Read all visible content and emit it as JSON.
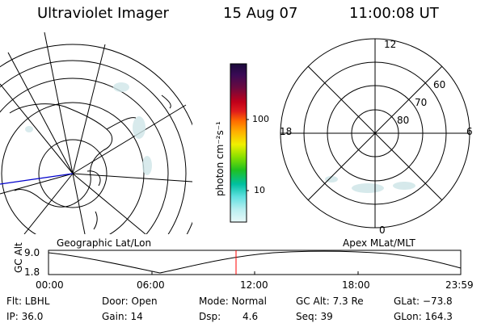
{
  "header": {
    "instrument": "Ultraviolet Imager",
    "date": "15 Aug 07",
    "time": "11:00:08 UT"
  },
  "geo_panel": {
    "label": "Geographic Lat/Lon"
  },
  "apex_panel": {
    "label": "Apex MLat/MLT",
    "mlt_labels": [
      "12",
      "18",
      "6",
      "0"
    ],
    "lat_labels": [
      "60",
      "70",
      "80"
    ]
  },
  "colorbar": {
    "unit": "photon cm⁻²s⁻¹",
    "ticks": [
      "100",
      "10"
    ],
    "colors": [
      "#1a0a3a",
      "#3a0a55",
      "#6a0a40",
      "#c0001a",
      "#e01c1c",
      "#ff6a00",
      "#ffb000",
      "#f0f000",
      "#88e000",
      "#20c020",
      "#00c0a0",
      "#60e0e0",
      "#b8eef0",
      "#e8f8f8"
    ]
  },
  "timeline": {
    "ylabel": "GC Alt",
    "y_ticks": [
      "9.0",
      "1.8"
    ],
    "x_ticks": [
      "00:00",
      "06:00",
      "12:00",
      "18:00",
      "23:59"
    ],
    "marker_color": "#ff0000"
  },
  "info": {
    "row1": {
      "filter": "Flt: LBHL",
      "door": "Door: Open",
      "mode": "Mode: Normal",
      "gcalt": "GC Alt: 7.3 Re",
      "glat": "GLat: −73.8"
    },
    "row2": {
      "ip": "IP: 36.0",
      "gain": "Gain: 14",
      "dsp_label": "Dsp:",
      "dsp_value": "4.6",
      "seq": "Seq: 39",
      "glon": "GLon: 164.3"
    }
  }
}
